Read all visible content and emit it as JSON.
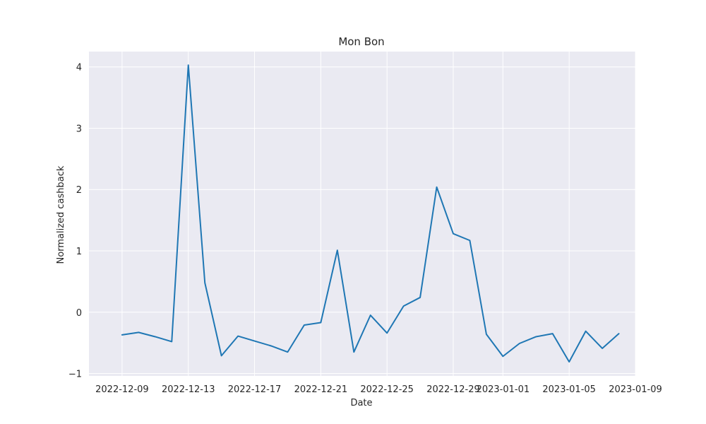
{
  "chart_data": {
    "type": "line",
    "title": "Mon Bon",
    "xlabel": "Date",
    "ylabel": "Normalized cashback",
    "x": [
      "2022-12-09",
      "2022-12-10",
      "2022-12-11",
      "2022-12-12",
      "2022-12-13",
      "2022-12-14",
      "2022-12-15",
      "2022-12-16",
      "2022-12-17",
      "2022-12-18",
      "2022-12-19",
      "2022-12-20",
      "2022-12-21",
      "2022-12-22",
      "2022-12-23",
      "2022-12-24",
      "2022-12-25",
      "2022-12-26",
      "2022-12-27",
      "2022-12-28",
      "2022-12-29",
      "2022-12-30",
      "2022-12-31",
      "2023-01-01",
      "2023-01-02",
      "2023-01-03",
      "2023-01-04",
      "2023-01-05",
      "2023-01-06",
      "2023-01-07",
      "2023-01-08"
    ],
    "series": [
      {
        "values": [
          -0.37,
          -0.33,
          -0.4,
          -0.48,
          4.03,
          0.48,
          -0.71,
          -0.39,
          -0.47,
          -0.55,
          -0.65,
          -0.21,
          -0.17,
          1.01,
          -0.65,
          -0.05,
          -0.34,
          0.1,
          0.24,
          2.04,
          1.28,
          1.17,
          -0.36,
          -0.72,
          -0.51,
          -0.4,
          -0.35,
          -0.81,
          -0.31,
          -0.59,
          -0.35
        ],
        "color": "#1f77b4"
      }
    ],
    "xticks": [
      "2022-12-09",
      "2022-12-13",
      "2022-12-17",
      "2022-12-21",
      "2022-12-25",
      "2022-12-29",
      "2023-01-01",
      "2023-01-05",
      "2023-01-09"
    ],
    "yticks": [
      -1,
      0,
      1,
      2,
      3,
      4
    ],
    "ytick_labels": [
      "−1",
      "0",
      "1",
      "2",
      "3",
      "4"
    ],
    "xlim": [
      "2022-12-07",
      "2023-01-09"
    ],
    "ylim": [
      -1.04,
      4.25
    ],
    "grid": true,
    "background": "#eaeaf2",
    "grid_color": "#ffffff"
  }
}
